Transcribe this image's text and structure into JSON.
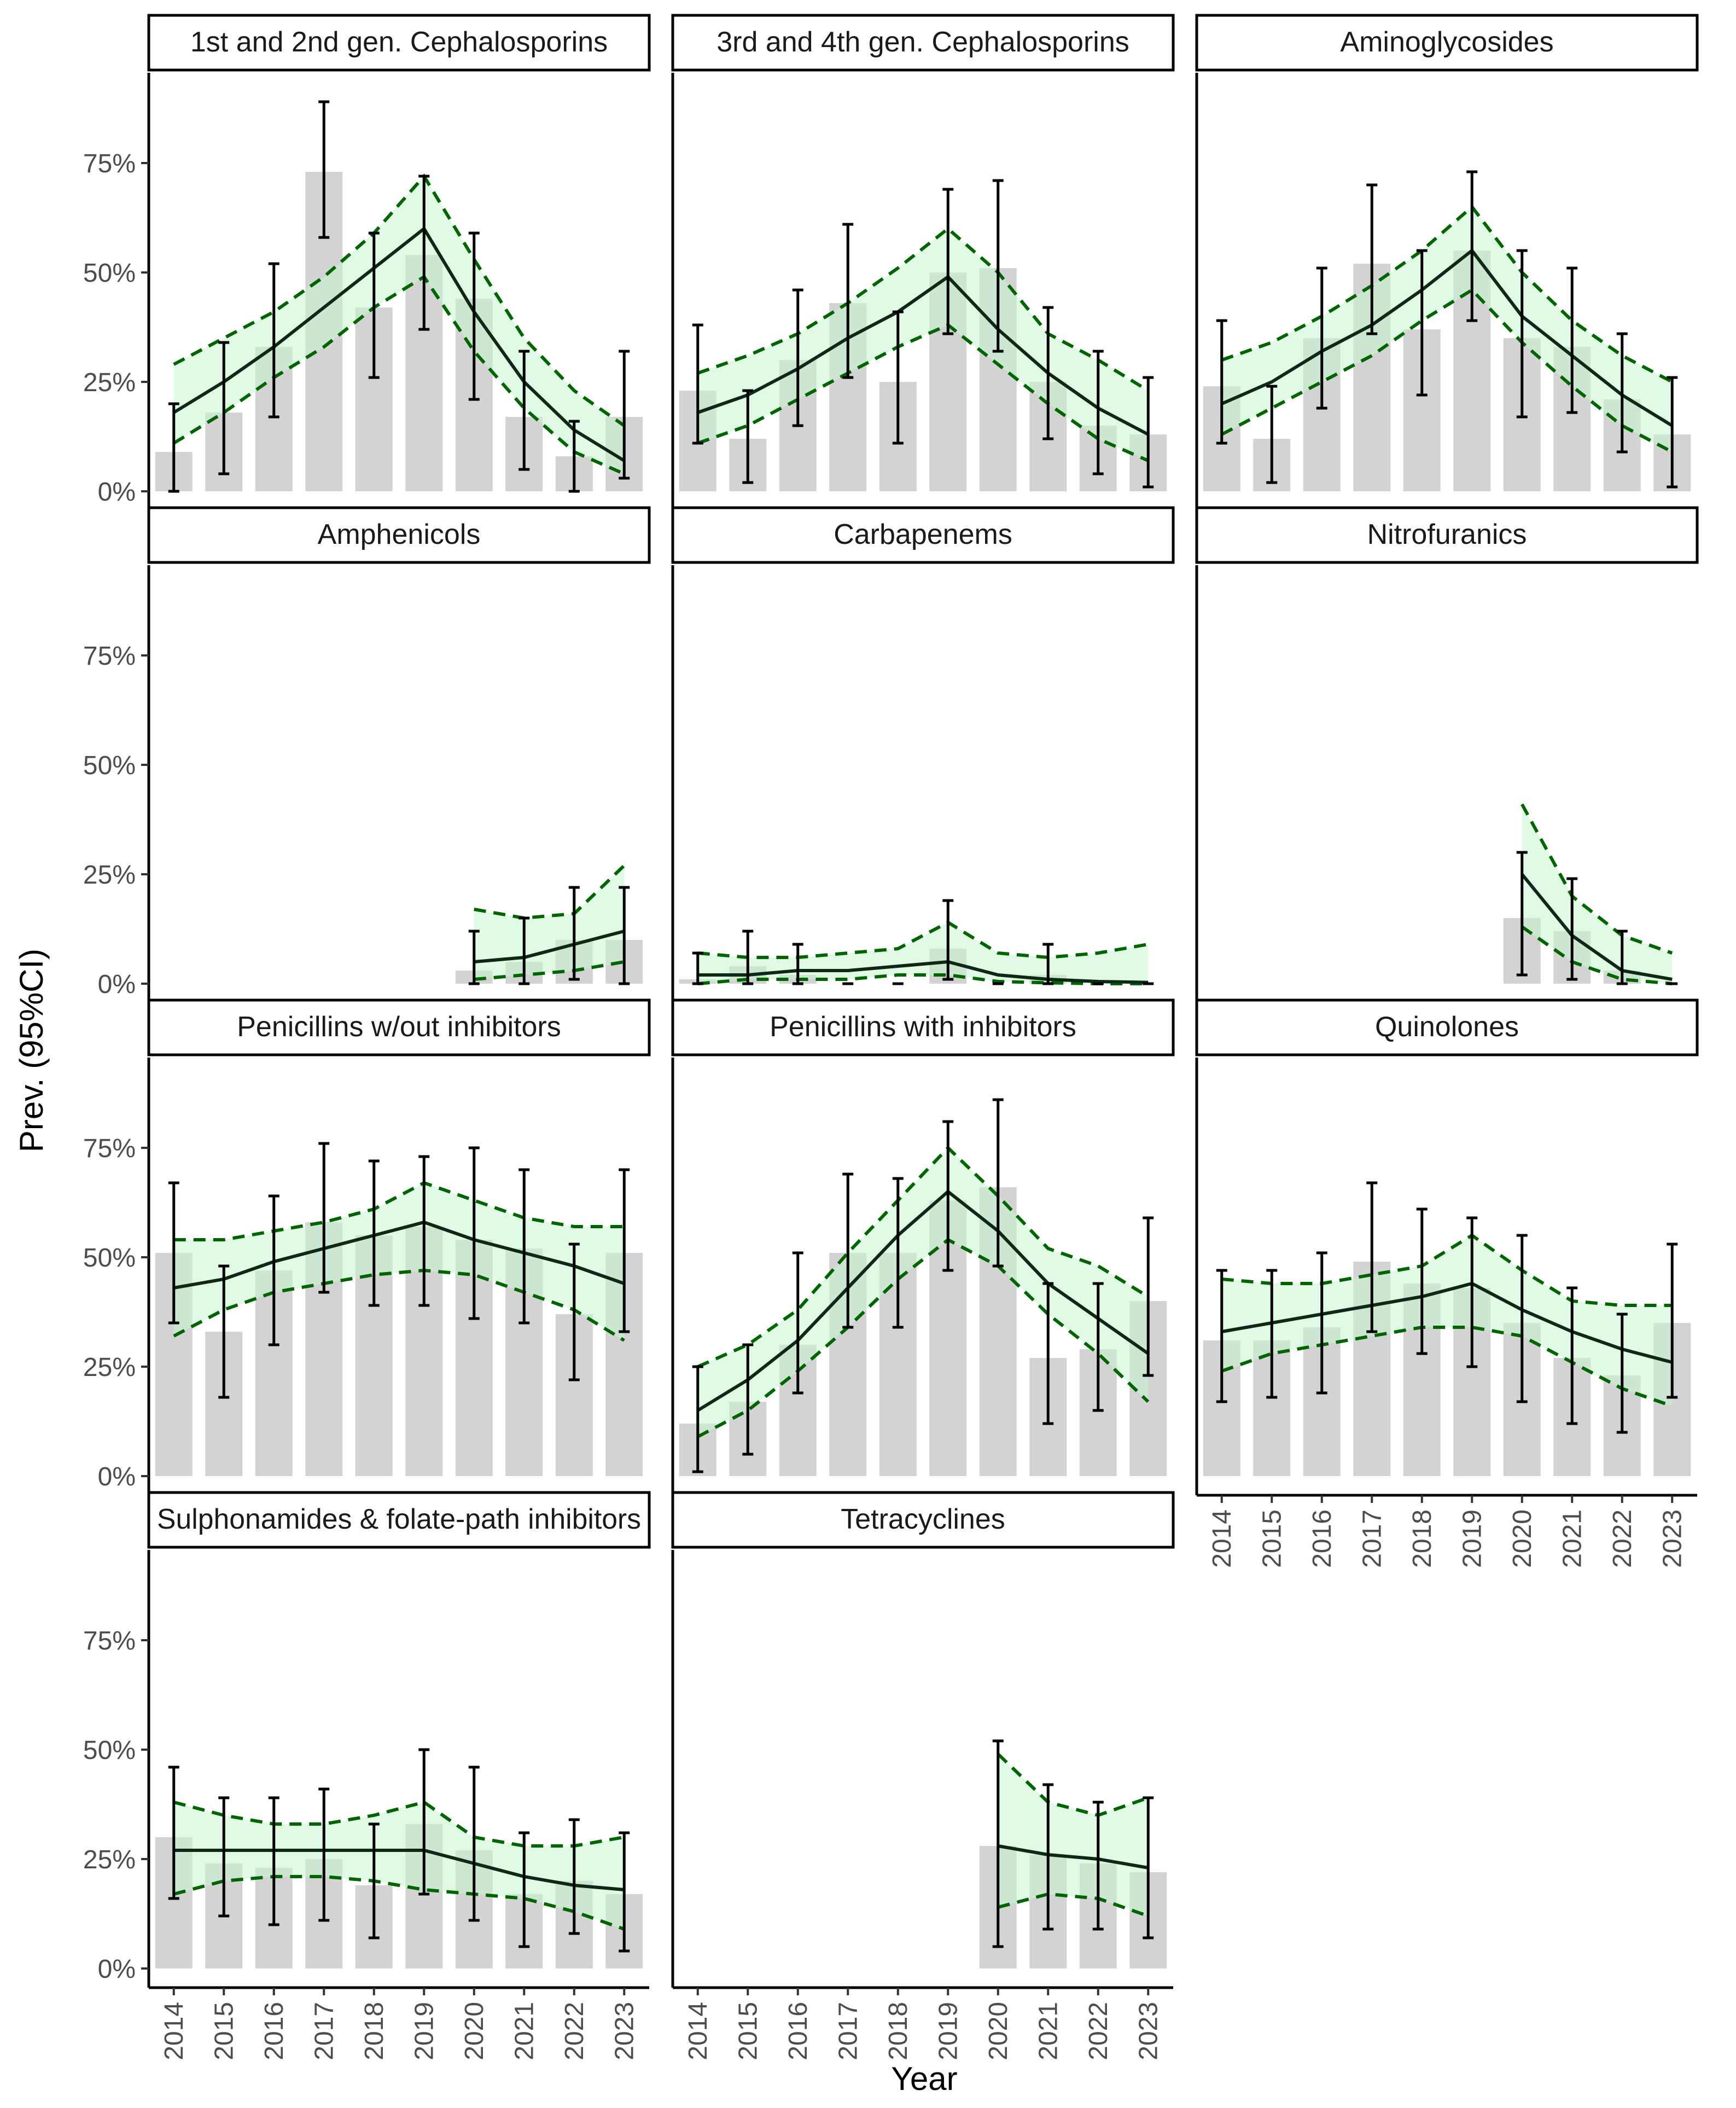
{
  "chart_data": {
    "type": "bar",
    "ylabel": "Prev. (95%CI)",
    "xlabel": "Year",
    "ylim": [
      0,
      95
    ],
    "y_ticks": [
      0,
      25,
      50,
      75
    ],
    "y_tick_labels": [
      "0%",
      "25%",
      "50%",
      "75%"
    ],
    "x_categories": [
      "2014",
      "2015",
      "2016",
      "2017",
      "2018",
      "2019",
      "2020",
      "2021",
      "2022",
      "2023"
    ],
    "grid": false,
    "colors": {
      "bar": "#d3d3d3",
      "ribbon": "#c8f5cf",
      "ci_line": "#006400",
      "estimate_line": "#0b2a16"
    },
    "panels": [
      {
        "title": "1st and 2nd gen. Cephalosporins",
        "bars": [
          9,
          18,
          33,
          73,
          42,
          54,
          44,
          17,
          8,
          17
        ],
        "error_bars": [
          [
            0,
            20
          ],
          [
            4,
            34
          ],
          [
            17,
            52
          ],
          [
            58,
            89
          ],
          [
            26,
            59
          ],
          [
            37,
            72
          ],
          [
            21,
            59
          ],
          [
            5,
            32
          ],
          [
            0,
            16
          ],
          [
            3,
            32
          ]
        ],
        "fit": [
          18,
          25,
          33,
          42,
          51,
          60,
          41,
          25,
          14,
          7
        ],
        "ci_low": [
          11,
          18,
          26,
          33,
          42,
          49,
          32,
          19,
          9,
          4
        ],
        "ci_high": [
          29,
          35,
          41,
          49,
          59,
          72,
          53,
          35,
          23,
          15
        ]
      },
      {
        "title": "3rd and 4th gen. Cephalosporins",
        "bars": [
          23,
          12,
          30,
          43,
          25,
          50,
          51,
          25,
          15,
          13
        ],
        "error_bars": [
          [
            11,
            38
          ],
          [
            2,
            23
          ],
          [
            15,
            46
          ],
          [
            26,
            61
          ],
          [
            11,
            41
          ],
          [
            36,
            69
          ],
          [
            32,
            71
          ],
          [
            12,
            42
          ],
          [
            4,
            32
          ],
          [
            1,
            26
          ]
        ],
        "fit": [
          18,
          22,
          28,
          35,
          41,
          49,
          37,
          27,
          19,
          13
        ],
        "ci_low": [
          11,
          15,
          21,
          27,
          33,
          38,
          29,
          20,
          12,
          7
        ],
        "ci_high": [
          27,
          31,
          36,
          43,
          51,
          60,
          50,
          36,
          30,
          23
        ]
      },
      {
        "title": "Aminoglycosides",
        "bars": [
          24,
          12,
          35,
          52,
          37,
          55,
          35,
          33,
          21,
          13
        ],
        "error_bars": [
          [
            11,
            39
          ],
          [
            2,
            24
          ],
          [
            19,
            51
          ],
          [
            36,
            70
          ],
          [
            22,
            55
          ],
          [
            39,
            73
          ],
          [
            17,
            55
          ],
          [
            18,
            51
          ],
          [
            9,
            36
          ],
          [
            1,
            26
          ]
        ],
        "fit": [
          20,
          25,
          32,
          38,
          46,
          55,
          40,
          31,
          22,
          15
        ],
        "ci_low": [
          13,
          19,
          25,
          31,
          39,
          46,
          34,
          24,
          15,
          9
        ],
        "ci_high": [
          30,
          34,
          40,
          47,
          55,
          65,
          50,
          39,
          31,
          25
        ]
      },
      {
        "title": "Amphenicols",
        "bars": [
          null,
          null,
          null,
          null,
          null,
          null,
          3,
          5,
          10,
          10
        ],
        "error_bars": [
          null,
          null,
          null,
          null,
          null,
          null,
          [
            0,
            12
          ],
          [
            0,
            15
          ],
          [
            1,
            22
          ],
          [
            0,
            22
          ]
        ],
        "fit": [
          null,
          null,
          null,
          null,
          null,
          null,
          5,
          6,
          9,
          12
        ],
        "ci_low": [
          null,
          null,
          null,
          null,
          null,
          null,
          1,
          2,
          3,
          5
        ],
        "ci_high": [
          null,
          null,
          null,
          null,
          null,
          null,
          17,
          15,
          16,
          27
        ]
      },
      {
        "title": "Carbapenems",
        "bars": [
          1,
          4,
          2,
          0,
          0,
          8,
          0,
          2,
          0,
          0
        ],
        "error_bars": [
          [
            0,
            7
          ],
          [
            0,
            12
          ],
          [
            0,
            9
          ],
          [
            0,
            0
          ],
          [
            0,
            0
          ],
          [
            1,
            19
          ],
          [
            0,
            0
          ],
          [
            0,
            9
          ],
          [
            0,
            0
          ],
          [
            0,
            0
          ]
        ],
        "fit": [
          2,
          2,
          3,
          3,
          4,
          5,
          2,
          1,
          0.5,
          0.3
        ],
        "ci_low": [
          0,
          1,
          1,
          1,
          2,
          2,
          0.5,
          0.2,
          0,
          0
        ],
        "ci_high": [
          7,
          6,
          6,
          7,
          8,
          14,
          7,
          6,
          7,
          9
        ]
      },
      {
        "title": "Nitrofuranics",
        "bars": [
          null,
          null,
          null,
          null,
          null,
          null,
          15,
          12,
          3,
          0
        ],
        "error_bars": [
          null,
          null,
          null,
          null,
          null,
          null,
          [
            2,
            30
          ],
          [
            1,
            24
          ],
          [
            0,
            12
          ],
          [
            0,
            0
          ]
        ],
        "fit": [
          null,
          null,
          null,
          null,
          null,
          null,
          25,
          11,
          3,
          1
        ],
        "ci_low": [
          null,
          null,
          null,
          null,
          null,
          null,
          13,
          5,
          1,
          0
        ],
        "ci_high": [
          null,
          null,
          null,
          null,
          null,
          null,
          41,
          20,
          11,
          7
        ]
      },
      {
        "title": "Penicillins w/out inhibitors",
        "bars": [
          51,
          33,
          47,
          58,
          55,
          57,
          54,
          52,
          37,
          51
        ],
        "error_bars": [
          [
            35,
            67
          ],
          [
            18,
            48
          ],
          [
            30,
            64
          ],
          [
            42,
            76
          ],
          [
            39,
            72
          ],
          [
            39,
            73
          ],
          [
            36,
            75
          ],
          [
            35,
            70
          ],
          [
            22,
            53
          ],
          [
            33,
            70
          ]
        ],
        "fit": [
          43,
          45,
          49,
          52,
          55,
          58,
          54,
          51,
          48,
          44
        ],
        "ci_low": [
          32,
          38,
          42,
          44,
          46,
          47,
          46,
          42,
          38,
          31
        ],
        "ci_high": [
          54,
          54,
          56,
          58,
          61,
          67,
          63,
          59,
          57,
          57
        ]
      },
      {
        "title": "Penicillins with inhibitors",
        "bars": [
          12,
          17,
          30,
          51,
          51,
          63,
          66,
          27,
          29,
          40
        ],
        "error_bars": [
          [
            1,
            25
          ],
          [
            5,
            30
          ],
          [
            19,
            51
          ],
          [
            34,
            69
          ],
          [
            34,
            68
          ],
          [
            47,
            81
          ],
          [
            48,
            86
          ],
          [
            12,
            44
          ],
          [
            15,
            44
          ],
          [
            23,
            59
          ]
        ],
        "fit": [
          15,
          22,
          31,
          43,
          55,
          65,
          56,
          44,
          36,
          28
        ],
        "ci_low": [
          9,
          15,
          24,
          34,
          45,
          54,
          48,
          37,
          28,
          17
        ],
        "ci_high": [
          25,
          30,
          38,
          51,
          63,
          75,
          64,
          52,
          48,
          41
        ]
      },
      {
        "title": "Quinolones",
        "bars": [
          31,
          31,
          34,
          49,
          44,
          43,
          35,
          27,
          23,
          35
        ],
        "error_bars": [
          [
            17,
            47
          ],
          [
            18,
            47
          ],
          [
            19,
            51
          ],
          [
            33,
            67
          ],
          [
            28,
            61
          ],
          [
            25,
            59
          ],
          [
            17,
            55
          ],
          [
            12,
            43
          ],
          [
            10,
            37
          ],
          [
            18,
            53
          ]
        ],
        "fit": [
          33,
          35,
          37,
          39,
          41,
          44,
          38,
          33,
          29,
          26
        ],
        "ci_low": [
          24,
          28,
          30,
          32,
          34,
          34,
          32,
          26,
          20,
          16
        ],
        "ci_high": [
          45,
          44,
          44,
          46,
          48,
          55,
          47,
          40,
          39,
          39
        ]
      },
      {
        "title": "Sulphonamides & folate-path inhibitors",
        "bars": [
          30,
          24,
          23,
          25,
          19,
          33,
          27,
          17,
          20,
          17
        ],
        "error_bars": [
          [
            16,
            46
          ],
          [
            12,
            39
          ],
          [
            10,
            39
          ],
          [
            11,
            41
          ],
          [
            7,
            33
          ],
          [
            17,
            50
          ],
          [
            11,
            46
          ],
          [
            5,
            31
          ],
          [
            8,
            34
          ],
          [
            4,
            31
          ]
        ],
        "fit": [
          27,
          27,
          27,
          27,
          27,
          27,
          24,
          21,
          19,
          18
        ],
        "ci_low": [
          17,
          20,
          21,
          21,
          20,
          18,
          17,
          16,
          13,
          9
        ],
        "ci_high": [
          38,
          35,
          33,
          33,
          35,
          38,
          30,
          28,
          28,
          30
        ]
      },
      {
        "title": "Tetracyclines",
        "bars": [
          null,
          null,
          null,
          null,
          null,
          null,
          28,
          26,
          24,
          22
        ],
        "error_bars": [
          null,
          null,
          null,
          null,
          null,
          null,
          [
            5,
            52
          ],
          [
            9,
            42
          ],
          [
            9,
            38
          ],
          [
            7,
            39
          ]
        ],
        "fit": [
          null,
          null,
          null,
          null,
          null,
          null,
          28,
          26,
          25,
          23
        ],
        "ci_low": [
          null,
          null,
          null,
          null,
          null,
          null,
          14,
          17,
          16,
          12
        ],
        "ci_high": [
          null,
          null,
          null,
          null,
          null,
          null,
          49,
          38,
          35,
          39
        ]
      }
    ]
  }
}
